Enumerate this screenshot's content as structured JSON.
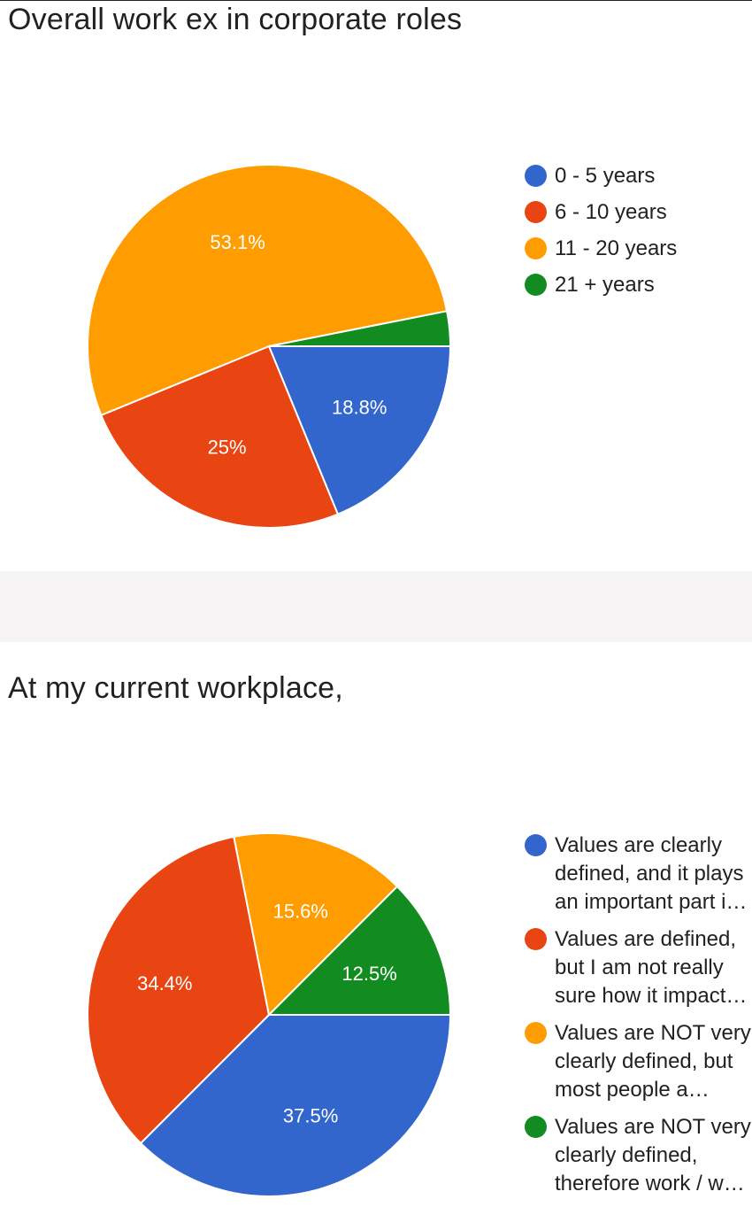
{
  "colors": {
    "blue": "#3366cc",
    "red": "#e84512",
    "orange": "#ff9d00",
    "green": "#128c20"
  },
  "chart_data": [
    {
      "type": "pie",
      "title": "Overall work ex in corporate roles",
      "legend_position": "right",
      "categories": [
        "0 - 5 years",
        "6 - 10 years",
        "11 - 20 years",
        "21 + years"
      ],
      "values": [
        18.8,
        25,
        53.1,
        3.1
      ],
      "labels": [
        "18.8%",
        "25%",
        "53.1%",
        ""
      ],
      "colors": [
        "#3366cc",
        "#e84512",
        "#ff9d00",
        "#128c20"
      ]
    },
    {
      "type": "pie",
      "title": "At my current workplace,",
      "legend_position": "right",
      "categories": [
        "Values are clearly defined, and it plays an important part i…",
        "Values are defined, but I am not really sure how it impact…",
        "Values are NOT very clearly defined, but most people a…",
        "Values are NOT very clearly defined, therefore work / w…"
      ],
      "values": [
        37.5,
        34.4,
        15.6,
        12.5
      ],
      "labels": [
        "37.5%",
        "34.4%",
        "15.6%",
        "12.5%"
      ],
      "colors": [
        "#3366cc",
        "#e84512",
        "#ff9d00",
        "#128c20"
      ]
    }
  ]
}
